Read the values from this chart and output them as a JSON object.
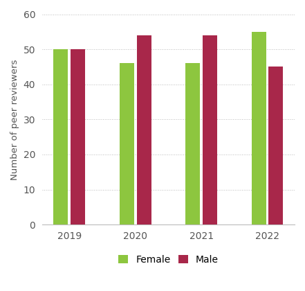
{
  "years": [
    "2019",
    "2020",
    "2021",
    "2022"
  ],
  "female_values": [
    50,
    46,
    46,
    55
  ],
  "male_values": [
    50,
    54,
    54,
    45
  ],
  "female_color": "#8DC63F",
  "male_color": "#A8274A",
  "ylabel": "Number of peer reviewers",
  "ylim": [
    0,
    60
  ],
  "yticks": [
    0,
    10,
    20,
    30,
    40,
    50,
    60
  ],
  "legend_labels": [
    "Female",
    "Male"
  ],
  "bar_width": 0.22,
  "background_color": "#ffffff",
  "grid_color": "#bbbbbb",
  "label_fontsize": 9.5,
  "tick_fontsize": 10,
  "legend_fontsize": 10
}
